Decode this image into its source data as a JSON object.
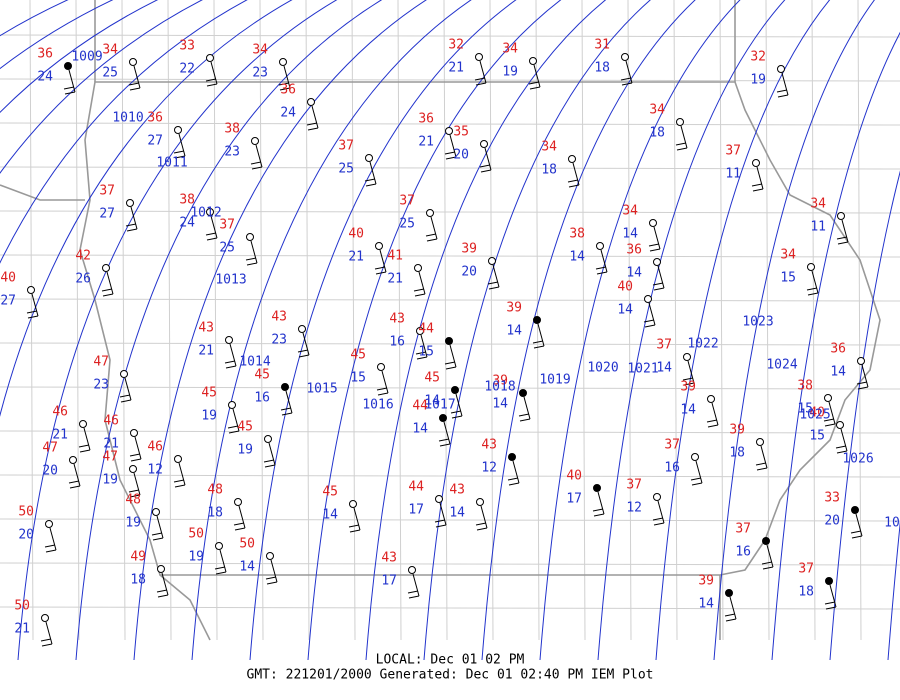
{
  "stations": [
    {
      "temp": 36,
      "dew": 24
    },
    {
      "temp": 34,
      "dew": 25
    },
    {
      "temp": 33,
      "dew": 22
    },
    {
      "temp": 34,
      "dew": 23
    },
    {
      "temp": 36,
      "dew": 24
    },
    {
      "temp": 36,
      "dew": 27
    },
    {
      "temp": 38,
      "dew": 23
    },
    {
      "temp": 37,
      "dew": 25
    },
    {
      "temp": 32,
      "dew": 21
    },
    {
      "temp": 34,
      "dew": 19
    },
    {
      "temp": 31,
      "dew": 18
    },
    {
      "temp": 32,
      "dew": 19
    },
    {
      "temp": 34,
      "dew": 18
    },
    {
      "temp": 37,
      "dew": 11
    },
    {
      "temp": 36,
      "dew": 21
    },
    {
      "temp": 35,
      "dew": 20
    },
    {
      "temp": 34,
      "dew": 18
    },
    {
      "temp": 37,
      "dew": 27
    },
    {
      "temp": 38,
      "dew": 24
    },
    {
      "temp": 37,
      "dew": 25
    },
    {
      "temp": 37,
      "dew": 25
    },
    {
      "temp": 40,
      "dew": 21
    },
    {
      "temp": 41,
      "dew": 21
    },
    {
      "temp": 39,
      "dew": 20
    },
    {
      "temp": 38,
      "dew": 14
    },
    {
      "temp": 34,
      "dew": 14
    },
    {
      "temp": 36,
      "dew": 14
    },
    {
      "temp": 40,
      "dew": 14
    },
    {
      "temp": 34,
      "dew": 11
    },
    {
      "temp": 34,
      "dew": 15
    },
    {
      "temp": 42,
      "dew": 26
    },
    {
      "temp": 40,
      "dew": 27
    },
    {
      "temp": 43,
      "dew": 21
    },
    {
      "temp": 43,
      "dew": 23
    },
    {
      "temp": 43,
      "dew": 16
    },
    {
      "temp": 44,
      "dew": 15
    },
    {
      "temp": 39,
      "dew": 14
    },
    {
      "temp": 45,
      "dew": 15
    },
    {
      "temp": 45,
      "dew": 16
    },
    {
      "temp": 45,
      "dew": 19
    },
    {
      "temp": 45,
      "dew": 19
    },
    {
      "temp": 47,
      "dew": 23
    },
    {
      "temp": 46,
      "dew": 21
    },
    {
      "temp": 47,
      "dew": 20
    },
    {
      "temp": 46,
      "dew": 21
    },
    {
      "temp": 47,
      "dew": 19
    },
    {
      "temp": 46,
      "dew": 12
    },
    {
      "temp": 45,
      "dew": 14
    },
    {
      "temp": 44,
      "dew": 14
    },
    {
      "temp": 39,
      "dew": 14
    },
    {
      "temp": 43,
      "dew": 12
    },
    {
      "temp": 37,
      "dew": 14
    },
    {
      "temp": 39,
      "dew": 14
    },
    {
      "temp": 36,
      "dew": 14
    },
    {
      "temp": 38,
      "dew": 15
    },
    {
      "temp": 40,
      "dew": 15
    },
    {
      "temp": 39,
      "dew": 18
    },
    {
      "temp": 37,
      "dew": 16
    },
    {
      "temp": 40,
      "dew": 17
    },
    {
      "temp": 37,
      "dew": 12
    },
    {
      "temp": 44,
      "dew": 17
    },
    {
      "temp": 43,
      "dew": 14
    },
    {
      "temp": 45,
      "dew": 14
    },
    {
      "temp": 48,
      "dew": 18
    },
    {
      "temp": 48,
      "dew": 19
    },
    {
      "temp": 50,
      "dew": 20
    },
    {
      "temp": 50,
      "dew": 19
    },
    {
      "temp": 50,
      "dew": 14
    },
    {
      "temp": 49,
      "dew": 18
    },
    {
      "temp": 43,
      "dew": 17
    },
    {
      "temp": 37,
      "dew": 16
    },
    {
      "temp": 33,
      "dew": 20
    },
    {
      "temp": 39,
      "dew": 14
    },
    {
      "temp": 37,
      "dew": 18
    },
    {
      "temp": 50,
      "dew": 21
    }
  ],
  "isobars": [
    "1009",
    "1010",
    "1011",
    "1012",
    "1013",
    "1014",
    "1015",
    "1016",
    "1017",
    "1018",
    "1019",
    "1020",
    "1021",
    "1022",
    "1023",
    "1024",
    "1025",
    "1026",
    "10"
  ],
  "footer": {
    "local": "LOCAL: Dec 01 02 PM",
    "gmt": "GMT: 221201/2000 Generated: Dec 01 02:40 PM IEM Plot"
  }
}
